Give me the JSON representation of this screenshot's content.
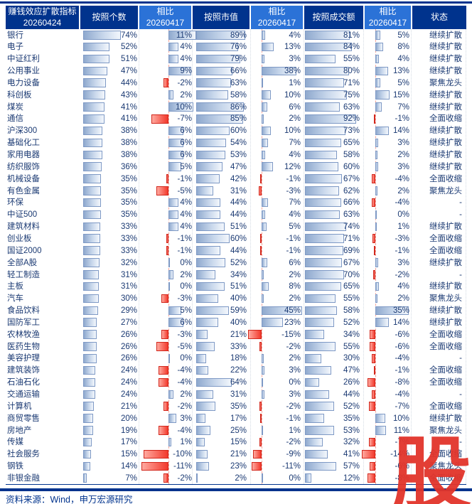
{
  "header": {
    "columns": [
      {
        "line1": "赚钱效应扩散指标",
        "line2": "20260424",
        "style": "navy"
      },
      {
        "line1": "按照个数",
        "line2": "",
        "style": "navy"
      },
      {
        "line1": "相比",
        "line2": "20260417",
        "style": "blue"
      },
      {
        "line1": "按照市值",
        "line2": "",
        "style": "navy"
      },
      {
        "line1": "相比",
        "line2": "20260417",
        "style": "blue"
      },
      {
        "line1": "按照成交额",
        "line2": "",
        "style": "navy"
      },
      {
        "line1": "相比",
        "line2": "20260417",
        "style": "blue"
      },
      {
        "line1": "状态",
        "line2": "",
        "style": "navy"
      }
    ]
  },
  "chart_data": {
    "type": "table",
    "title": "赚钱效应扩散指标 20260424",
    "unit": "%",
    "columns": [
      "行业/指数",
      "按照个数",
      "相比20260417",
      "按照市值",
      "相比20260417",
      "按照成交额",
      "相比20260417",
      "状态"
    ],
    "rows": [
      {
        "name": "银行",
        "count": 74,
        "d_count": 11,
        "mcap": 89,
        "d_mcap": 4,
        "turnover": 81,
        "d_turnover": 5,
        "status": "继续扩散"
      },
      {
        "name": "电子",
        "count": 52,
        "d_count": 4,
        "mcap": 76,
        "d_mcap": 13,
        "turnover": 84,
        "d_turnover": 8,
        "status": "继续扩散"
      },
      {
        "name": "中证红利",
        "count": 51,
        "d_count": 4,
        "mcap": 79,
        "d_mcap": 3,
        "turnover": 55,
        "d_turnover": 4,
        "status": "继续扩散"
      },
      {
        "name": "公用事业",
        "count": 47,
        "d_count": 9,
        "mcap": 66,
        "d_mcap": 38,
        "turnover": 80,
        "d_turnover": 13,
        "status": "继续扩散"
      },
      {
        "name": "电力设备",
        "count": 44,
        "d_count": -2,
        "mcap": 63,
        "d_mcap": 1,
        "turnover": 71,
        "d_turnover": 5,
        "status": "聚焦龙头"
      },
      {
        "name": "科创板",
        "count": 43,
        "d_count": 2,
        "mcap": 58,
        "d_mcap": 10,
        "turnover": 75,
        "d_turnover": 15,
        "status": "继续扩散"
      },
      {
        "name": "煤炭",
        "count": 41,
        "d_count": 10,
        "mcap": 86,
        "d_mcap": 6,
        "turnover": 63,
        "d_turnover": 7,
        "status": "继续扩散"
      },
      {
        "name": "通信",
        "count": 41,
        "d_count": -7,
        "mcap": 85,
        "d_mcap": 2,
        "turnover": 92,
        "d_turnover": -1,
        "status": "全面收缩"
      },
      {
        "name": "沪深300",
        "count": 38,
        "d_count": 6,
        "mcap": 60,
        "d_mcap": 10,
        "turnover": 73,
        "d_turnover": 14,
        "status": "继续扩散"
      },
      {
        "name": "基础化工",
        "count": 38,
        "d_count": 6,
        "mcap": 54,
        "d_mcap": 7,
        "turnover": 65,
        "d_turnover": 3,
        "status": "继续扩散"
      },
      {
        "name": "家用电器",
        "count": 38,
        "d_count": 6,
        "mcap": 53,
        "d_mcap": 4,
        "turnover": 58,
        "d_turnover": 2,
        "status": "继续扩散"
      },
      {
        "name": "纺织服饰",
        "count": 36,
        "d_count": 5,
        "mcap": 47,
        "d_mcap": 12,
        "turnover": 60,
        "d_turnover": 3,
        "status": "继续扩散"
      },
      {
        "name": "机械设备",
        "count": 35,
        "d_count": -1,
        "mcap": 42,
        "d_mcap": -1,
        "turnover": 67,
        "d_turnover": -4,
        "status": "全面收缩"
      },
      {
        "name": "有色金属",
        "count": 35,
        "d_count": -5,
        "mcap": 31,
        "d_mcap": -3,
        "turnover": 62,
        "d_turnover": 2,
        "status": "聚焦龙头"
      },
      {
        "name": "环保",
        "count": 35,
        "d_count": 4,
        "mcap": 44,
        "d_mcap": 7,
        "turnover": 66,
        "d_turnover": -4,
        "status": "-"
      },
      {
        "name": "中证500",
        "count": 35,
        "d_count": 4,
        "mcap": 44,
        "d_mcap": 4,
        "turnover": 63,
        "d_turnover": 0,
        "status": "-"
      },
      {
        "name": "建筑材料",
        "count": 33,
        "d_count": 4,
        "mcap": 51,
        "d_mcap": 5,
        "turnover": 74,
        "d_turnover": 1,
        "status": "继续扩散"
      },
      {
        "name": "创业板",
        "count": 33,
        "d_count": -1,
        "mcap": 60,
        "d_mcap": -1,
        "turnover": 71,
        "d_turnover": -3,
        "status": "全面收缩"
      },
      {
        "name": "国证2000",
        "count": 33,
        "d_count": -1,
        "mcap": 44,
        "d_mcap": -1,
        "turnover": 69,
        "d_turnover": -1,
        "status": "全面收缩"
      },
      {
        "name": "全部A股",
        "count": 32,
        "d_count": 0,
        "mcap": 52,
        "d_mcap": 6,
        "turnover": 67,
        "d_turnover": 3,
        "status": "继续扩散"
      },
      {
        "name": "轻工制造",
        "count": 31,
        "d_count": 2,
        "mcap": 34,
        "d_mcap": 2,
        "turnover": 70,
        "d_turnover": -2,
        "status": "-"
      },
      {
        "name": "主板",
        "count": 31,
        "d_count": 0,
        "mcap": 51,
        "d_mcap": 8,
        "turnover": 65,
        "d_turnover": 4,
        "status": "继续扩散"
      },
      {
        "name": "汽车",
        "count": 30,
        "d_count": -3,
        "mcap": 40,
        "d_mcap": 2,
        "turnover": 55,
        "d_turnover": 2,
        "status": "聚焦龙头"
      },
      {
        "name": "食品饮料",
        "count": 29,
        "d_count": 5,
        "mcap": 59,
        "d_mcap": 45,
        "turnover": 58,
        "d_turnover": 35,
        "status": "继续扩散"
      },
      {
        "name": "国防军工",
        "count": 27,
        "d_count": 6,
        "mcap": 40,
        "d_mcap": 23,
        "turnover": 52,
        "d_turnover": 14,
        "status": "继续扩散"
      },
      {
        "name": "农林牧渔",
        "count": 26,
        "d_count": -3,
        "mcap": 21,
        "d_mcap": -15,
        "turnover": 34,
        "d_turnover": -6,
        "status": "全面收缩"
      },
      {
        "name": "医药生物",
        "count": 26,
        "d_count": -5,
        "mcap": 33,
        "d_mcap": -2,
        "turnover": 55,
        "d_turnover": -6,
        "status": "全面收缩"
      },
      {
        "name": "美容护理",
        "count": 26,
        "d_count": 0,
        "mcap": 18,
        "d_mcap": 2,
        "turnover": 30,
        "d_turnover": -4,
        "status": "-"
      },
      {
        "name": "建筑装饰",
        "count": 24,
        "d_count": -4,
        "mcap": 22,
        "d_mcap": 3,
        "turnover": 47,
        "d_turnover": -1,
        "status": "全面收缩"
      },
      {
        "name": "石油石化",
        "count": 24,
        "d_count": -4,
        "mcap": 64,
        "d_mcap": 0,
        "turnover": 26,
        "d_turnover": -8,
        "status": "全面收缩"
      },
      {
        "name": "交通运输",
        "count": 24,
        "d_count": 2,
        "mcap": 31,
        "d_mcap": 3,
        "turnover": 44,
        "d_turnover": -4,
        "status": "-"
      },
      {
        "name": "计算机",
        "count": 21,
        "d_count": -2,
        "mcap": 35,
        "d_mcap": -2,
        "turnover": 52,
        "d_turnover": -7,
        "status": "全面收缩"
      },
      {
        "name": "商贸零售",
        "count": 20,
        "d_count": 3,
        "mcap": 17,
        "d_mcap": -1,
        "turnover": 35,
        "d_turnover": 10,
        "status": "继续扩散"
      },
      {
        "name": "房地产",
        "count": 19,
        "d_count": -4,
        "mcap": 25,
        "d_mcap": 1,
        "turnover": 53,
        "d_turnover": 11,
        "status": "聚焦龙头"
      },
      {
        "name": "传媒",
        "count": 17,
        "d_count": 1,
        "mcap": 15,
        "d_mcap": -2,
        "turnover": 32,
        "d_turnover": -7,
        "status": "-"
      },
      {
        "name": "社会服务",
        "count": 15,
        "d_count": -10,
        "mcap": 21,
        "d_mcap": -9,
        "turnover": 41,
        "d_turnover": -14,
        "status": "全面收缩"
      },
      {
        "name": "钢铁",
        "count": 14,
        "d_count": -11,
        "mcap": 23,
        "d_mcap": -11,
        "turnover": 57,
        "d_turnover": -6,
        "status": "聚焦龙头"
      },
      {
        "name": "非银金融",
        "count": 7,
        "d_count": -2,
        "mcap": 2,
        "d_mcap": 0,
        "turnover": 12,
        "d_turnover": -8,
        "status": "全面收缩"
      }
    ]
  },
  "footer": {
    "source": "资料来源：Wind，申万宏源研究"
  },
  "watermark": {
    "char": "股",
    "color": "#E2342B"
  },
  "colors": {
    "header_navy": "#00338D",
    "header_blue": "#2B72D7",
    "body_text": "#1B3A73",
    "bar_blue_border": "#7E99C5",
    "bar_red": "#F2392C",
    "axis_dashed": "#F4A49B"
  }
}
